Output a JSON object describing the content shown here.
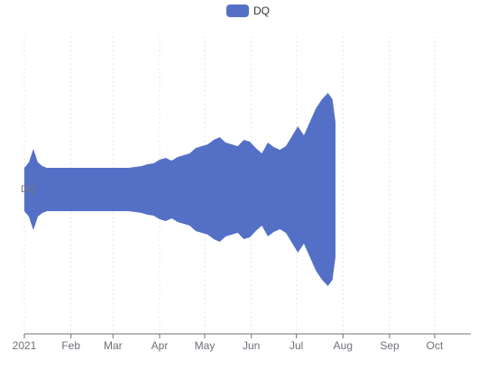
{
  "chart_data": {
    "type": "themeriver",
    "x": [
      "2021-01-01",
      "2021-01-04",
      "2021-01-07",
      "2021-01-10",
      "2021-01-13",
      "2021-01-16",
      "2021-01-20",
      "2021-01-25",
      "2021-01-30",
      "2021-02-04",
      "2021-02-09",
      "2021-02-14",
      "2021-02-19",
      "2021-02-24",
      "2021-03-01",
      "2021-03-06",
      "2021-03-11",
      "2021-03-16",
      "2021-03-20",
      "2021-03-24",
      "2021-03-28",
      "2021-04-01",
      "2021-04-05",
      "2021-04-09",
      "2021-04-13",
      "2021-04-17",
      "2021-04-21",
      "2021-04-25",
      "2021-04-29",
      "2021-05-03",
      "2021-05-07",
      "2021-05-11",
      "2021-05-15",
      "2021-05-19",
      "2021-05-23",
      "2021-05-27",
      "2021-05-31",
      "2021-06-04",
      "2021-06-08",
      "2021-06-12",
      "2021-06-16",
      "2021-06-20",
      "2021-06-24",
      "2021-06-28",
      "2021-07-02",
      "2021-07-06",
      "2021-07-10",
      "2021-07-14",
      "2021-07-18",
      "2021-07-22",
      "2021-07-25",
      "2021-07-27"
    ],
    "series": [
      {
        "name": "DQ",
        "color": "#5470c6",
        "values": [
          48,
          60,
          90,
          60,
          52,
          48,
          48,
          48,
          48,
          48,
          48,
          48,
          48,
          48,
          48,
          48,
          48,
          50,
          52,
          56,
          58,
          66,
          70,
          64,
          72,
          76,
          80,
          92,
          96,
          100,
          110,
          116,
          104,
          100,
          96,
          110,
          106,
          92,
          80,
          104,
          94,
          88,
          96,
          118,
          140,
          120,
          150,
          180,
          200,
          214,
          200,
          150
        ]
      }
    ],
    "xlim": [
      "2021-01-01",
      "2021-10-25"
    ],
    "xticks": [
      {
        "value": "2021-01-01",
        "label": "2021"
      },
      {
        "value": "2021-02-01",
        "label": "Feb"
      },
      {
        "value": "2021-03-01",
        "label": "Mar"
      },
      {
        "value": "2021-04-01",
        "label": "Apr"
      },
      {
        "value": "2021-05-01",
        "label": "May"
      },
      {
        "value": "2021-06-01",
        "label": "Jun"
      },
      {
        "value": "2021-07-01",
        "label": "Jul"
      },
      {
        "value": "2021-08-01",
        "label": "Aug"
      },
      {
        "value": "2021-09-01",
        "label": "Sep"
      },
      {
        "value": "2021-10-01",
        "label": "Oct"
      }
    ],
    "grid": true,
    "legend": "top"
  }
}
